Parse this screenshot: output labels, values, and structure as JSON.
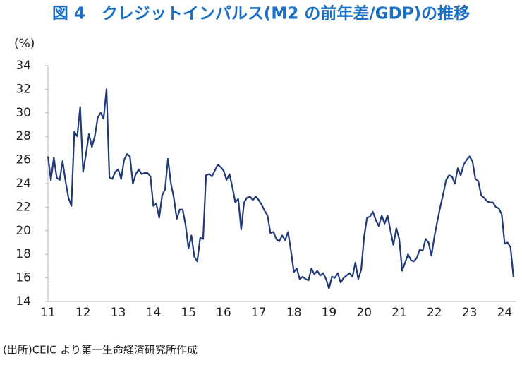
{
  "chart_data": {
    "type": "line",
    "title": "図 4　クレジットインパルス(M2 の前年差/GDP)の推移",
    "y_label": "(%)",
    "source": "(出所)CEIC より第一生命経済研究所作成",
    "categories": [
      "11",
      null,
      null,
      null,
      null,
      null,
      null,
      null,
      null,
      null,
      null,
      null,
      "12",
      null,
      null,
      null,
      null,
      null,
      null,
      null,
      null,
      null,
      null,
      null,
      "13",
      null,
      null,
      null,
      null,
      null,
      null,
      null,
      null,
      null,
      null,
      null,
      "14",
      null,
      null,
      null,
      null,
      null,
      null,
      null,
      null,
      null,
      null,
      null,
      "15",
      null,
      null,
      null,
      null,
      null,
      null,
      null,
      null,
      null,
      null,
      null,
      "16",
      null,
      null,
      null,
      null,
      null,
      null,
      null,
      null,
      null,
      null,
      null,
      "17",
      null,
      null,
      null,
      null,
      null,
      null,
      null,
      null,
      null,
      null,
      null,
      "18",
      null,
      null,
      null,
      null,
      null,
      null,
      null,
      null,
      null,
      null,
      null,
      "19",
      null,
      null,
      null,
      null,
      null,
      null,
      null,
      null,
      null,
      null,
      null,
      "20",
      null,
      null,
      null,
      null,
      null,
      null,
      null,
      null,
      null,
      null,
      null,
      "21",
      null,
      null,
      null,
      null,
      null,
      null,
      null,
      null,
      null,
      null,
      null,
      "22",
      null,
      null,
      null,
      null,
      null,
      null,
      null,
      null,
      null,
      null,
      null,
      "23",
      null,
      null,
      null,
      null,
      null,
      null,
      null,
      null,
      null,
      null,
      null,
      "24",
      null,
      null,
      null
    ],
    "series": [
      {
        "name": "クレジットインパルス",
        "color": "#1f3a7a",
        "values": [
          26.3,
          24.3,
          26.2,
          24.5,
          24.3,
          25.9,
          24.2,
          22.8,
          22.1,
          28.4,
          28.0,
          30.5,
          25.0,
          26.5,
          28.2,
          27.1,
          28.0,
          29.6,
          30.0,
          29.5,
          32.0,
          24.5,
          24.4,
          25.0,
          25.2,
          24.4,
          26.0,
          26.5,
          26.3,
          24.0,
          24.8,
          25.2,
          24.8,
          24.9,
          24.9,
          24.6,
          22.1,
          22.3,
          21.1,
          23.0,
          23.5,
          26.1,
          24.0,
          22.8,
          21.0,
          21.8,
          21.8,
          20.5,
          18.5,
          19.6,
          17.8,
          17.4,
          19.4,
          19.3,
          24.7,
          24.8,
          24.6,
          25.1,
          25.6,
          25.4,
          25.1,
          24.3,
          24.8,
          23.7,
          22.4,
          22.7,
          20.1,
          22.4,
          22.8,
          22.9,
          22.6,
          22.9,
          22.6,
          22.2,
          21.7,
          21.3,
          19.8,
          19.9,
          19.3,
          19.1,
          19.6,
          19.2,
          19.9,
          18.3,
          16.5,
          16.8,
          15.9,
          16.1,
          15.9,
          15.8,
          16.8,
          16.3,
          16.6,
          16.2,
          16.4,
          15.9,
          15.1,
          16.1,
          16.0,
          16.4,
          15.6,
          16.0,
          16.2,
          16.4,
          16.1,
          17.3,
          15.9,
          16.7,
          19.5,
          21.1,
          21.2,
          21.6,
          20.9,
          20.4,
          21.3,
          20.6,
          21.3,
          20.0,
          18.8,
          20.2,
          19.3,
          16.6,
          17.3,
          18.0,
          17.5,
          17.4,
          17.7,
          18.4,
          18.3,
          19.3,
          19.0,
          17.9,
          19.5,
          20.8,
          22.0,
          23.1,
          24.3,
          24.7,
          24.6,
          24.0,
          25.3,
          24.7,
          25.6,
          26.0,
          26.3,
          25.9,
          24.4,
          24.2,
          23.0,
          22.8,
          22.5,
          22.4,
          22.4,
          22.0,
          21.9,
          21.4,
          18.9,
          19.0,
          18.6,
          16.1
        ]
      }
    ],
    "ylim": [
      14,
      34
    ],
    "yticks": [
      14,
      16,
      18,
      20,
      22,
      24,
      26,
      28,
      30,
      32,
      34
    ],
    "grid": false
  }
}
